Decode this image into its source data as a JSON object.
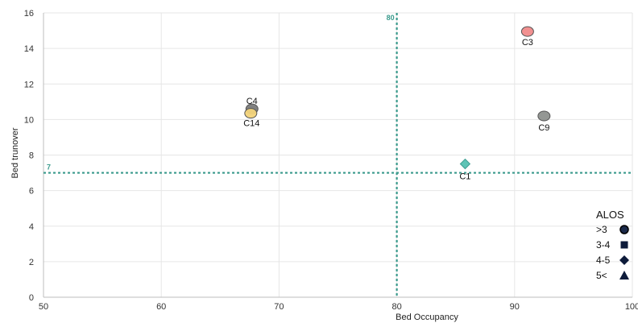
{
  "chart_data": {
    "type": "scatter",
    "xlabel": "Bed Occupancy",
    "ylabel": "Bed trunover",
    "xlim": [
      50,
      100
    ],
    "ylim": [
      0,
      16
    ],
    "x_ticks": [
      "50",
      "60",
      "70",
      "80",
      "90",
      "100"
    ],
    "y_ticks": [
      "0",
      "2",
      "4",
      "6",
      "8",
      "10",
      "12",
      "14",
      "16"
    ],
    "grid": true,
    "reference_lines": [
      {
        "orientation": "vertical",
        "value": 80,
        "label": "80",
        "color": "#3a9a8c",
        "style": "dotted"
      },
      {
        "orientation": "horizontal",
        "value": 7,
        "label": "7",
        "color": "#3a9a8c",
        "style": "dotted"
      }
    ],
    "points": [
      {
        "label": "C4",
        "x": 67.7,
        "y": 10.6,
        "shape": "circle",
        "color": "#7a7a7a"
      },
      {
        "label": "C14",
        "x": 67.6,
        "y": 10.35,
        "shape": "circle",
        "color": "#f2d37a"
      },
      {
        "label": "C3",
        "x": 91.1,
        "y": 14.95,
        "shape": "circle",
        "color": "#f08a8a"
      },
      {
        "label": "C9",
        "x": 92.5,
        "y": 10.2,
        "shape": "circle",
        "color": "#8e918e"
      },
      {
        "label": "C1",
        "x": 85.8,
        "y": 7.5,
        "shape": "diamond",
        "color": "#5ec4b6"
      }
    ],
    "legend": {
      "title": "ALOS",
      "position": "bottom-right",
      "entries": [
        {
          "label": ">3",
          "shape": "circle"
        },
        {
          "label": "3-4",
          "shape": "square"
        },
        {
          "label": "4-5",
          "shape": "diamond"
        },
        {
          "label": "5<",
          "shape": "triangle"
        }
      ]
    }
  }
}
